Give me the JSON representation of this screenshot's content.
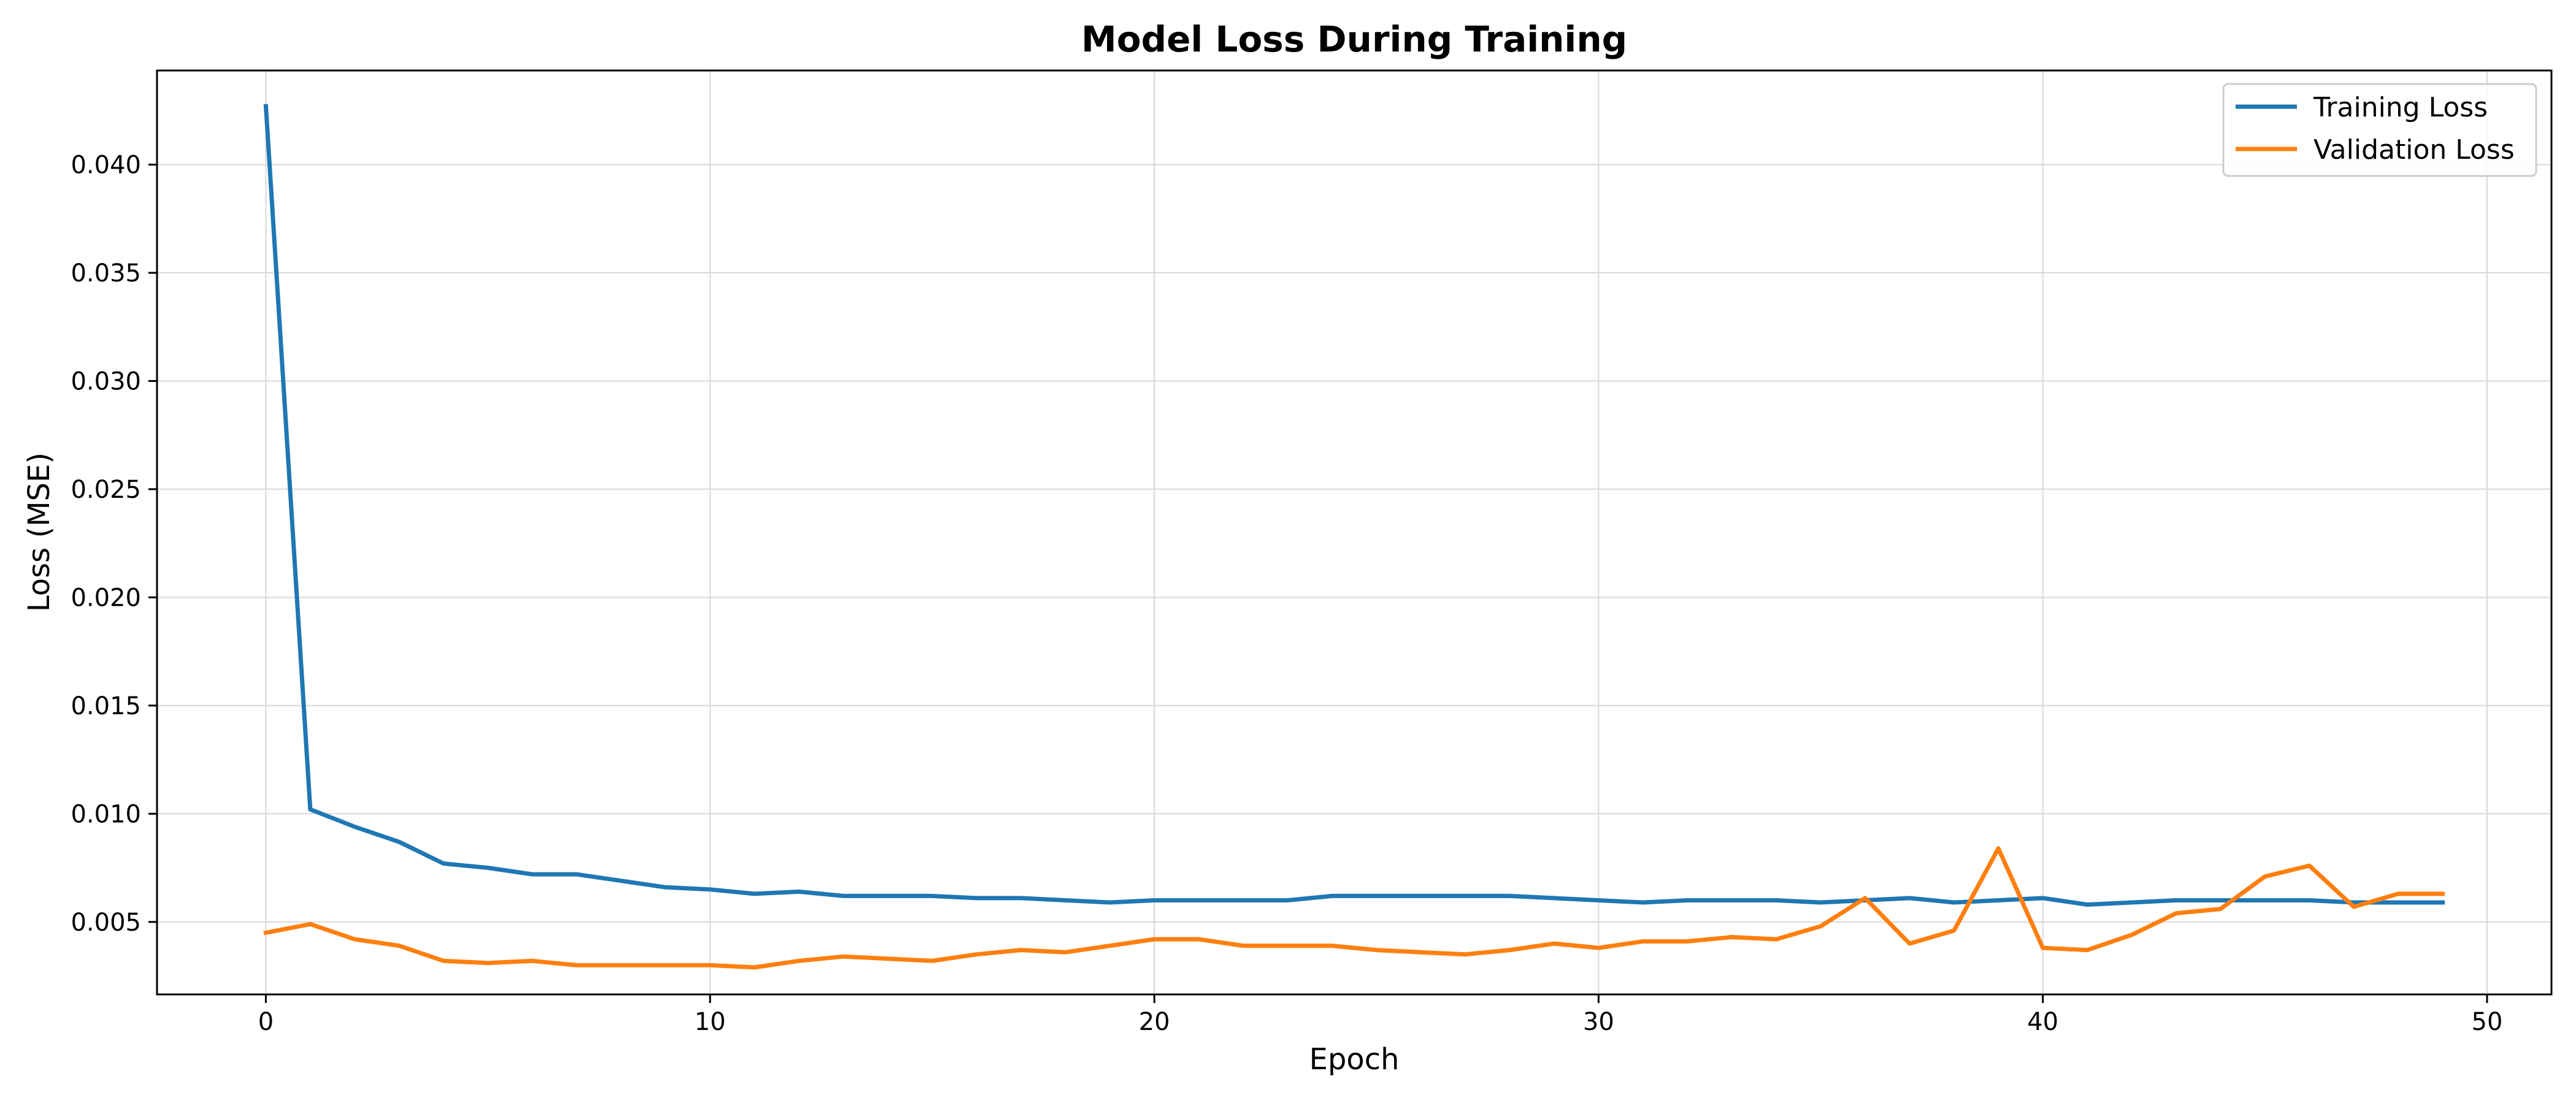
{
  "chart_data": {
    "type": "line",
    "title": "Model Loss During Training",
    "xlabel": "Epoch",
    "ylabel": "Loss (MSE)",
    "xlim": [
      -2.45,
      51.45
    ],
    "ylim": [
      0.00165,
      0.04435
    ],
    "x_ticks": [
      0,
      10,
      20,
      30,
      40,
      50
    ],
    "x_tick_labels": [
      "0",
      "10",
      "20",
      "30",
      "40",
      "50"
    ],
    "y_ticks": [
      0.005,
      0.01,
      0.015,
      0.02,
      0.025,
      0.03,
      0.035,
      0.04
    ],
    "y_tick_labels": [
      "0.005",
      "0.010",
      "0.015",
      "0.020",
      "0.025",
      "0.030",
      "0.035",
      "0.040"
    ],
    "grid": true,
    "legend_position": "top-right",
    "x": [
      0,
      1,
      2,
      3,
      4,
      5,
      6,
      7,
      8,
      9,
      10,
      11,
      12,
      13,
      14,
      15,
      16,
      17,
      18,
      19,
      20,
      21,
      22,
      23,
      24,
      25,
      26,
      27,
      28,
      29,
      30,
      31,
      32,
      33,
      34,
      35,
      36,
      37,
      38,
      39,
      40,
      41,
      42,
      43,
      44,
      45,
      46,
      47,
      48,
      49
    ],
    "series": [
      {
        "name": "Training Loss",
        "color": "#1f77b4",
        "values": [
          0.0427,
          0.0102,
          0.0094,
          0.0087,
          0.0077,
          0.0075,
          0.0072,
          0.0072,
          0.0069,
          0.0066,
          0.0065,
          0.0063,
          0.0064,
          0.0062,
          0.0062,
          0.0062,
          0.0061,
          0.0061,
          0.006,
          0.0059,
          0.006,
          0.006,
          0.006,
          0.006,
          0.0062,
          0.0062,
          0.0062,
          0.0062,
          0.0062,
          0.0061,
          0.006,
          0.0059,
          0.006,
          0.006,
          0.006,
          0.0059,
          0.006,
          0.0061,
          0.0059,
          0.006,
          0.0061,
          0.0058,
          0.0059,
          0.006,
          0.006,
          0.006,
          0.006,
          0.0059,
          0.0059,
          0.0059
        ]
      },
      {
        "name": "Validation Loss",
        "color": "#ff7f0e",
        "values": [
          0.0045,
          0.0049,
          0.0042,
          0.0039,
          0.0032,
          0.0031,
          0.0032,
          0.003,
          0.003,
          0.003,
          0.003,
          0.0029,
          0.0032,
          0.0034,
          0.0033,
          0.0032,
          0.0035,
          0.0037,
          0.0036,
          0.0039,
          0.0042,
          0.0042,
          0.0039,
          0.0039,
          0.0039,
          0.0037,
          0.0036,
          0.0035,
          0.0037,
          0.004,
          0.0038,
          0.0041,
          0.0041,
          0.0043,
          0.0042,
          0.0048,
          0.0061,
          0.004,
          0.0046,
          0.0084,
          0.0038,
          0.0037,
          0.0044,
          0.0054,
          0.0056,
          0.0071,
          0.0076,
          0.0057,
          0.0063,
          0.0063
        ]
      }
    ]
  }
}
